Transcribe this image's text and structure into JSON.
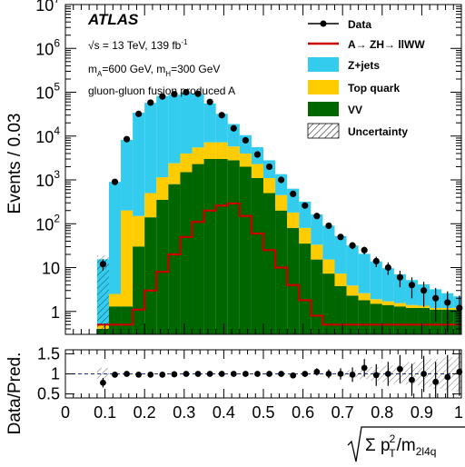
{
  "chart_data": [
    {
      "type": "stacked histogram",
      "log_scale_y": true,
      "ylabel": "Events / 0.03",
      "ylim": [
        0.3,
        10000000
      ],
      "xlim": [
        0,
        1
      ],
      "y_ticks": [
        {
          "value": 10000000,
          "base": "10",
          "exp": "7"
        },
        {
          "value": 1000000,
          "base": "10",
          "exp": "6"
        },
        {
          "value": 100000,
          "base": "10",
          "exp": "5"
        },
        {
          "value": 10000,
          "base": "10",
          "exp": "4"
        },
        {
          "value": 1000,
          "base": "10",
          "exp": "3"
        },
        {
          "value": 100,
          "base": "10",
          "exp": "2"
        },
        {
          "value": 10,
          "base": "10",
          "exp": ""
        },
        {
          "value": 1,
          "base": "1",
          "exp": ""
        }
      ],
      "bin_edges": [
        0.08,
        0.11,
        0.14,
        0.17,
        0.2,
        0.23,
        0.26,
        0.29,
        0.32,
        0.35,
        0.38,
        0.41,
        0.44,
        0.47,
        0.5,
        0.53,
        0.56,
        0.59,
        0.62,
        0.65,
        0.68,
        0.71,
        0.74,
        0.77,
        0.8,
        0.83,
        0.86,
        0.89,
        0.92,
        0.95,
        0.98,
        1.0
      ],
      "series": [
        {
          "name": "VV",
          "color": "#006600",
          "values": [
            0.1,
            1.0,
            1.0,
            30,
            140,
            350,
            800,
            1500,
            2300,
            3000,
            3000,
            2800,
            2000,
            1100,
            500,
            200,
            80,
            35,
            15,
            7,
            3.5,
            2.0,
            1.5,
            1.2,
            1.1,
            1.0,
            0.9,
            0.9,
            0.8,
            0.8,
            0.8
          ]
        },
        {
          "name": "Top quark",
          "color": "#ffcc00",
          "values": [
            0.1,
            1.2,
            200,
            120,
            360,
            800,
            1600,
            2500,
            3200,
            4200,
            4200,
            3000,
            2000,
            1200,
            600,
            250,
            100,
            45,
            18,
            8,
            3.5,
            1.6,
            0.8,
            0.4,
            0.3,
            0.25,
            0.2,
            0.15,
            0.1,
            0.1,
            0.1
          ]
        },
        {
          "name": "Z+jets",
          "color": "#33ccee",
          "values": [
            15,
            900,
            8000,
            34000,
            57000,
            81000,
            85000,
            95000,
            86000,
            48000,
            25000,
            13000,
            6500,
            3300,
            1700,
            900,
            450,
            240,
            130,
            75,
            45,
            28,
            18,
            12,
            8,
            5.5,
            3.8,
            2.8,
            2.0,
            1.4,
            1.0
          ]
        }
      ],
      "signal": {
        "name": "A→ ZH→ llWW",
        "color": "#cc0000",
        "values": [
          0.5,
          0.5,
          0.5,
          1.1,
          3,
          8,
          20,
          50,
          110,
          200,
          260,
          290,
          150,
          60,
          25,
          10,
          4,
          1.8,
          0.8,
          0.5,
          0.5,
          0.5,
          0.5,
          0.5,
          0.5,
          0.5,
          0.5,
          0.5,
          0.5,
          0.5,
          0.5
        ]
      },
      "data": {
        "name": "Data",
        "x": [
          0.095,
          0.125,
          0.155,
          0.185,
          0.215,
          0.245,
          0.275,
          0.305,
          0.335,
          0.365,
          0.395,
          0.425,
          0.455,
          0.485,
          0.515,
          0.545,
          0.575,
          0.605,
          0.635,
          0.665,
          0.695,
          0.725,
          0.755,
          0.785,
          0.815,
          0.845,
          0.875,
          0.905,
          0.935,
          0.965,
          0.995
        ],
        "y": [
          12,
          900,
          8500,
          32000,
          58000,
          80000,
          90000,
          100000,
          92000,
          60000,
          30000,
          15000,
          8000,
          3800,
          2000,
          1000,
          480,
          260,
          150,
          90,
          50,
          32,
          25,
          14,
          10,
          6,
          4,
          3,
          2,
          1.6,
          1.2
        ]
      },
      "uncertainty_label": "Uncertainty",
      "annotations": {
        "atlas": "ATLAS",
        "energy": "√s = 13 TeV, 139 fb",
        "energy_sup": "-1",
        "mass_a": "m",
        "mass_a_sub": "A",
        "mass_a_val": "=600 GeV, m",
        "mass_h_sub": "H",
        "mass_h_val": "=300 GeV",
        "process": "gluon-gluon fusion produced A"
      }
    },
    {
      "type": "ratio",
      "ylabel": "Data/Pred.",
      "ylim": [
        0.4,
        1.6
      ],
      "y_ticks": [
        "1.5",
        "1",
        "0.5"
      ],
      "xlim": [
        0,
        1
      ],
      "x_ticks": [
        "0",
        "0.1",
        "0.2",
        "0.3",
        "0.4",
        "0.5",
        "0.6",
        "0.7",
        "0.8",
        "0.9",
        "1"
      ],
      "xlabel_parts": {
        "sigma": "Σ p",
        "sup": "2",
        "sub": "T",
        "mid": "/m",
        "tail": "2l4q"
      },
      "x": [
        0.095,
        0.125,
        0.155,
        0.185,
        0.215,
        0.245,
        0.275,
        0.305,
        0.335,
        0.365,
        0.395,
        0.425,
        0.455,
        0.485,
        0.515,
        0.545,
        0.575,
        0.605,
        0.635,
        0.665,
        0.695,
        0.725,
        0.755,
        0.785,
        0.815,
        0.845,
        0.875,
        0.905,
        0.935,
        0.965,
        0.995
      ],
      "values": [
        0.78,
        0.98,
        1.0,
        0.98,
        0.98,
        0.98,
        0.99,
        1.0,
        1.0,
        1.0,
        1.0,
        1.0,
        1.0,
        1.0,
        1.0,
        1.0,
        0.96,
        1.0,
        1.05,
        1.0,
        1.0,
        0.98,
        1.15,
        0.97,
        1.0,
        1.12,
        0.85,
        1.0,
        0.8,
        0.92,
        1.05
      ],
      "errors": [
        0.12,
        0.03,
        0.02,
        0.01,
        0.01,
        0.01,
        0.01,
        0.01,
        0.01,
        0.01,
        0.01,
        0.01,
        0.01,
        0.02,
        0.02,
        0.03,
        0.05,
        0.07,
        0.09,
        0.11,
        0.14,
        0.18,
        0.22,
        0.27,
        0.3,
        0.35,
        0.4,
        0.45,
        0.5,
        0.55,
        0.6
      ]
    }
  ]
}
